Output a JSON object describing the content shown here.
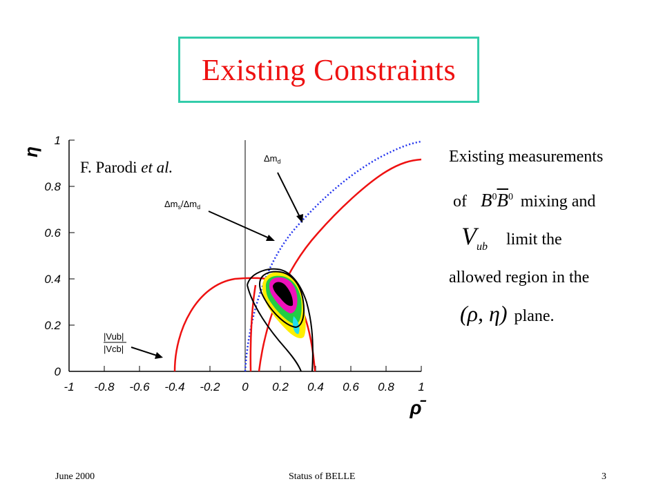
{
  "title": "Existing Constraints",
  "plot": {
    "attribution_name": "F. Parodi ",
    "attribution_suffix": "et al.",
    "y_axis_label": "η̄",
    "x_axis_label": "ρ̄",
    "x_ticks": [
      "-1",
      "-0.8",
      "-0.6",
      "-0.4",
      "-0.2",
      "0",
      "0.2",
      "0.4",
      "0.6",
      "0.8",
      "1"
    ],
    "y_ticks": [
      "0",
      "0.2",
      "0.4",
      "0.6",
      "0.8",
      "1"
    ],
    "label_dmd": "Δm",
    "label_dmd_sub": "d",
    "label_dms": "Δm",
    "label_dms_sub": "s",
    "label_dms_div": "/Δm",
    "label_dms_div_sub": "d",
    "label_vub": "|Vub|",
    "label_vcb": "|Vcb|",
    "colors": {
      "red": "#ee1111",
      "blue": "#2233ee",
      "yellow": "#ffee00",
      "green": "#22cc44",
      "cyan": "#22ddee",
      "magenta": "#ee11bb"
    }
  },
  "side": {
    "line1": "Existing measurements",
    "line2_pre": "of",
    "line2_b": "B",
    "line2_b_sup": "0",
    "line2_bbar": "B",
    "line2_bbar_sup": "0",
    "line2_post": "mixing and",
    "line3_v": "V",
    "line3_sub": "ub",
    "line3_post": "limit the",
    "line4": "allowed region in the",
    "line5_math": "(ρ, η)",
    "line5_post": "plane."
  },
  "footer": {
    "date": "June 2000",
    "center": "Status of BELLE",
    "page": "3"
  }
}
